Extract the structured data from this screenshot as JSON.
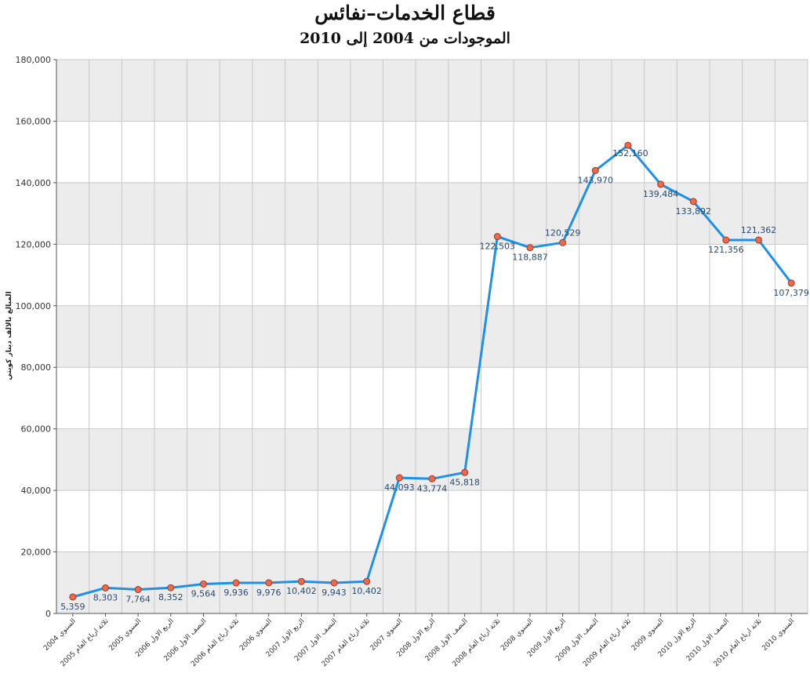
{
  "chart_data": {
    "type": "line",
    "title": "قطاع الخدمات–نفائس",
    "subtitle": "الموجودات من 2004 إلى 2010",
    "ylabel": "المبالغ بالالف دينار كويتي",
    "xlabel": "",
    "ylim": [
      0,
      180000
    ],
    "yticks": [
      0,
      20000,
      40000,
      60000,
      80000,
      100000,
      120000,
      140000,
      160000,
      180000
    ],
    "ytick_labels": [
      "0",
      "20,000",
      "40,000",
      "60,000",
      "80,000",
      "100,000",
      "120,000",
      "140,000",
      "160,000",
      "180,000"
    ],
    "grid": true,
    "categories": [
      "السنوي 2004",
      "ثلاثة ارباع العام 2005",
      "السنوي 2005",
      "الربع الاول 2006",
      "النصف الاول 2006",
      "ثلاثة ارباع العام 2006",
      "السنوي 2006",
      "الربع الاول 2007",
      "النصف الاول 2007",
      "ثلاثة ارباع العام 2007",
      "السنوي 2007",
      "الربع الاول 2008",
      "النصف الاول 2008",
      "ثلاثة ارباع العام 2008",
      "السنوي 2008",
      "الربع الاول 2009",
      "النصف الاول 2009",
      "ثلاثة ارباع العام 2009",
      "السنوي 2009",
      "الربع الاول 2010",
      "النصف الاول 2010",
      "ثلاثة ارباع العام 2010",
      "السنوي 2010"
    ],
    "values": [
      5359,
      8303,
      7764,
      8352,
      9564,
      9936,
      9976,
      10402,
      9943,
      10402,
      44093,
      43774,
      45818,
      122503,
      118887,
      120529,
      143970,
      152160,
      139484,
      133892,
      121356,
      121362,
      107379
    ],
    "value_labels": [
      "5,359",
      "8,303",
      "7,764",
      "8,352",
      "9,564",
      "9,936",
      "9,976",
      "10,402",
      "9,943",
      "10,402",
      "44,093",
      "43,774",
      "45,818",
      "122,503",
      "118,887",
      "120,529",
      "143,970",
      "152,160",
      "139,484",
      "133,892",
      "121,356",
      "121,362",
      "107,379"
    ],
    "colors": {
      "line": "#1e90e8",
      "marker_fill": "#ef6a4a",
      "marker_stroke": "#9a3a25",
      "band": "#ececec",
      "grid": "#c8c8c8",
      "axis": "#555555"
    }
  }
}
